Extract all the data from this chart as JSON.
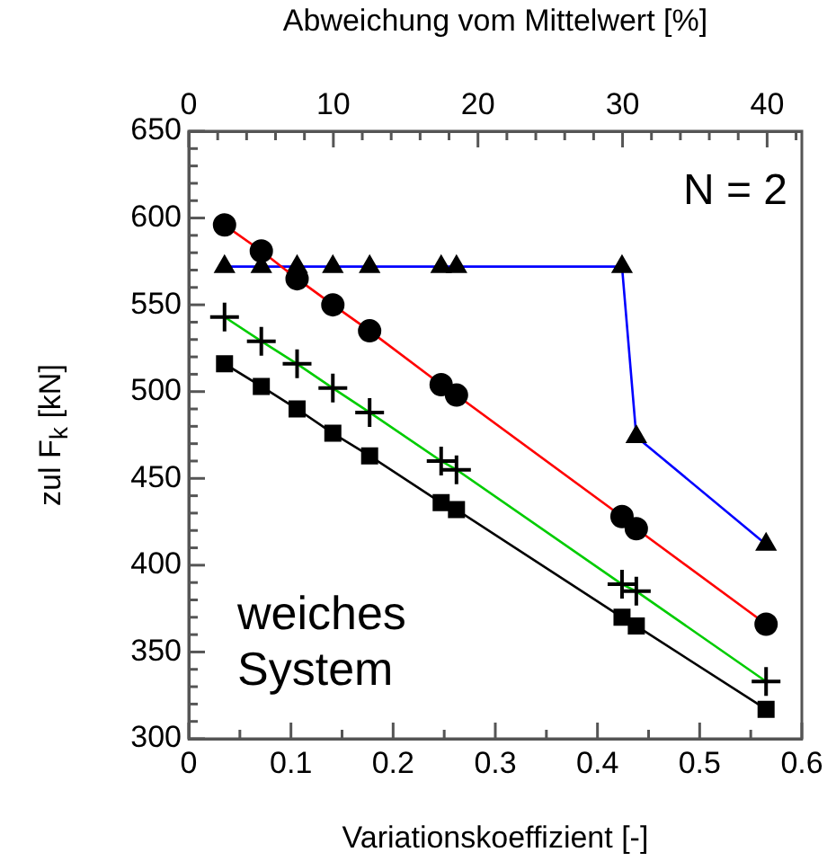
{
  "chart_data": {
    "type": "line",
    "xlabel": "Variationskoeffizient [-]",
    "ylabel": "zul F$_{k}$ [kN]",
    "x2label": "Abweichung vom Mittelwert [%]",
    "annotations": [
      "N = 2",
      "weiches System"
    ],
    "x": [
      0.035,
      0.071,
      0.106,
      0.141,
      0.177,
      0.247,
      0.262,
      0.424,
      0.438,
      0.565
    ],
    "series": [
      {
        "color": "#ff0000",
        "marker": "circle",
        "values": [
          596,
          581,
          565,
          550,
          535,
          504,
          498,
          428,
          421,
          366
        ]
      },
      {
        "color": "#0000ff",
        "marker": "triangle",
        "values": [
          572,
          572,
          572,
          572,
          572,
          572,
          572,
          572,
          474,
          412
        ]
      },
      {
        "color": "#00cc00",
        "marker": "cross",
        "values": [
          543,
          529,
          516,
          502,
          488,
          460,
          455,
          389,
          385,
          333
        ]
      },
      {
        "color": "#000000",
        "marker": "square",
        "values": [
          516,
          503,
          490,
          476,
          463,
          436,
          432,
          370,
          365,
          317
        ]
      }
    ],
    "xlim": [
      0,
      0.6
    ],
    "xticks": [
      0,
      {
        "value": 0.05,
        "label": null
      },
      0.1,
      {
        "value": 0.15,
        "label": null
      },
      0.2,
      {
        "value": 0.25,
        "label": null
      },
      0.3,
      {
        "value": 0.35,
        "label": null
      },
      0.4,
      {
        "value": 0.45,
        "label": null
      },
      0.5,
      {
        "value": 0.55,
        "label": null
      },
      0.6
    ],
    "x2lim": [
      0,
      42.4
    ],
    "x2ticks": [
      0,
      {
        "value": 2,
        "label": null
      },
      {
        "value": 4,
        "label": null
      },
      {
        "value": 6,
        "label": null
      },
      {
        "value": 8,
        "label": null
      },
      10,
      {
        "value": 12,
        "label": null
      },
      {
        "value": 14,
        "label": null
      },
      {
        "value": 16,
        "label": null
      },
      {
        "value": 18,
        "label": null
      },
      20,
      {
        "value": 22,
        "label": null
      },
      {
        "value": 24,
        "label": null
      },
      {
        "value": 26,
        "label": null
      },
      {
        "value": 28,
        "label": null
      },
      30,
      {
        "value": 32,
        "label": null
      },
      {
        "value": 34,
        "label": null
      },
      {
        "value": 36,
        "label": null
      },
      {
        "value": 38,
        "label": null
      },
      40,
      {
        "value": 42,
        "label": null
      }
    ],
    "ylim": [
      300,
      650
    ],
    "yticks": [
      300,
      {
        "value": 310,
        "label": null
      },
      {
        "value": 320,
        "label": null
      },
      {
        "value": 330,
        "label": null
      },
      {
        "value": 340,
        "label": null
      },
      350,
      {
        "value": 360,
        "label": null
      },
      {
        "value": 370,
        "label": null
      },
      {
        "value": 380,
        "label": null
      },
      {
        "value": 390,
        "label": null
      },
      400,
      {
        "value": 410,
        "label": null
      },
      {
        "value": 420,
        "label": null
      },
      {
        "value": 430,
        "label": null
      },
      {
        "value": 440,
        "label": null
      },
      450,
      {
        "value": 460,
        "label": null
      },
      {
        "value": 470,
        "label": null
      },
      {
        "value": 480,
        "label": null
      },
      {
        "value": 490,
        "label": null
      },
      500,
      {
        "value": 510,
        "label": null
      },
      {
        "value": 520,
        "label": null
      },
      {
        "value": 530,
        "label": null
      },
      {
        "value": 540,
        "label": null
      },
      550,
      {
        "value": 560,
        "label": null
      },
      {
        "value": 570,
        "label": null
      },
      {
        "value": 580,
        "label": null
      },
      {
        "value": 590,
        "label": null
      },
      600,
      {
        "value": 610,
        "label": null
      },
      {
        "value": 620,
        "label": null
      },
      {
        "value": 630,
        "label": null
      },
      {
        "value": 640,
        "label": null
      },
      650
    ],
    "grid": false,
    "legend": false,
    "line_style": "solid"
  }
}
